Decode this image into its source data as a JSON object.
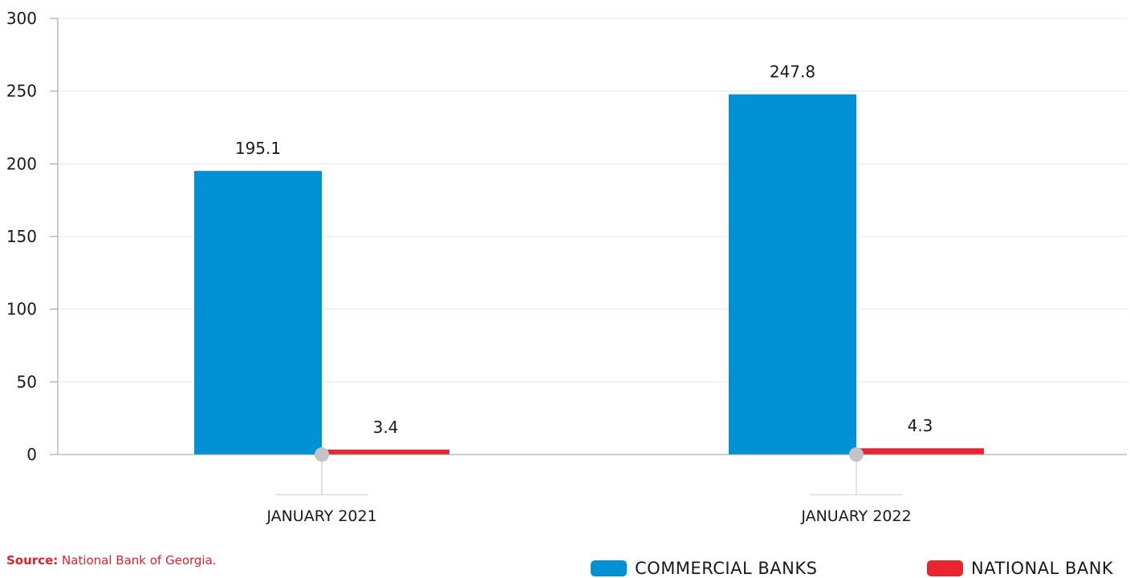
{
  "chart_data": {
    "type": "bar",
    "categories": [
      "JANUARY 2021",
      "JANUARY 2022"
    ],
    "series": [
      {
        "name": "COMMERCIAL BANKS",
        "values": [
          195.1,
          247.8
        ],
        "color": "#0091d5"
      },
      {
        "name": "NATIONAL BANK",
        "values": [
          3.4,
          4.3
        ],
        "color": "#e9252f"
      }
    ],
    "data_labels": [
      [
        "195.1",
        "247.8"
      ],
      [
        "3.4",
        "4.3"
      ]
    ],
    "ylim": [
      0,
      300
    ],
    "yticks": [
      0,
      50,
      100,
      150,
      200,
      250,
      300
    ],
    "grid": true,
    "legend_position": "bottom-right"
  },
  "source": {
    "label": "Source:",
    "text": "National Bank of Georgia."
  },
  "legend": [
    {
      "label": "COMMERCIAL BANKS",
      "color": "#0091d5"
    },
    {
      "label": "NATIONAL BANK",
      "color": "#e9252f"
    }
  ]
}
